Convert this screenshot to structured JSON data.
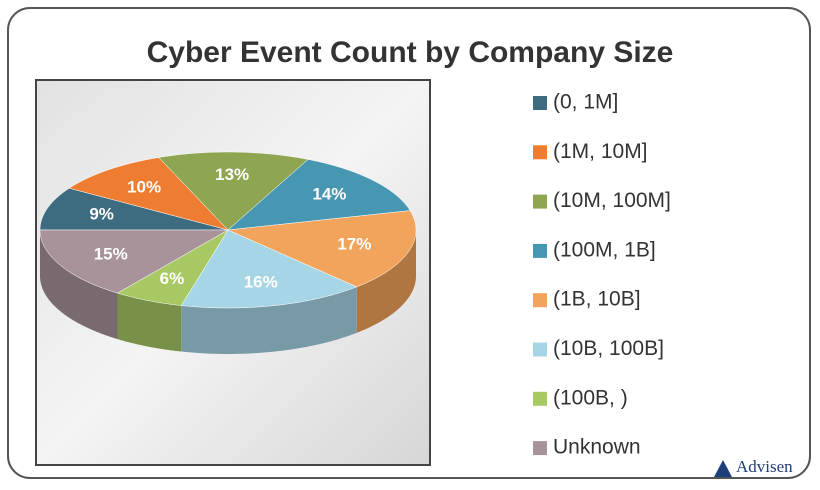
{
  "chart_data": {
    "type": "pie3d",
    "title": "Cyber Event Count by Company Size",
    "categories": [
      "(0, 1M]",
      "(1M, 10M]",
      "(10M, 100M]",
      "(100M, 1B]",
      "(1B, 10B]",
      "(10B, 100B]",
      "(100B, )",
      "Unknown"
    ],
    "values": [
      9,
      10,
      13,
      14,
      17,
      16,
      6,
      15
    ],
    "value_labels": [
      "9%",
      "10%",
      "13%",
      "14%",
      "17%",
      "16%",
      "6%",
      "15%"
    ],
    "colors": [
      "#3d6b80",
      "#ee7d31",
      "#8ea651",
      "#4797b3",
      "#f3a45c",
      "#a6d6e6",
      "#a8c864",
      "#a8939a"
    ],
    "legend": "right"
  },
  "logo": "Advisen"
}
